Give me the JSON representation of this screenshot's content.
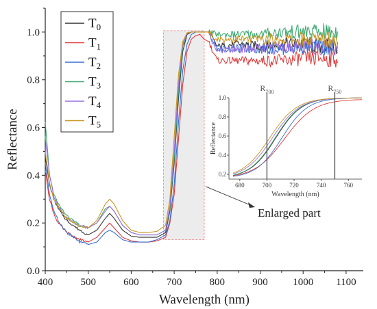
{
  "chart_data": {
    "type": "line",
    "xlabel": "Wavelength (nm)",
    "ylabel": "Reflectance",
    "xlim": [
      400,
      1140
    ],
    "ylim": [
      0.0,
      1.1
    ],
    "x_ticks": [
      400,
      500,
      600,
      700,
      800,
      900,
      1000,
      1100
    ],
    "y_ticks": [
      0.0,
      0.2,
      0.4,
      0.6,
      0.8,
      1.0
    ],
    "legend_placement": "top-left",
    "grid": false,
    "series": [
      {
        "name": "T0",
        "base": "T",
        "sub": "0",
        "color": "#333333",
        "x": [
          400,
          410,
          420,
          430,
          450,
          480,
          500,
          520,
          540,
          550,
          560,
          580,
          600,
          620,
          640,
          660,
          680,
          690,
          700,
          710,
          720,
          730,
          740,
          750,
          760,
          770,
          780,
          800,
          850,
          900,
          950,
          1000,
          1050,
          1080
        ],
        "y": [
          0.48,
          0.36,
          0.3,
          0.26,
          0.21,
          0.17,
          0.15,
          0.17,
          0.22,
          0.24,
          0.22,
          0.17,
          0.145,
          0.14,
          0.14,
          0.14,
          0.16,
          0.25,
          0.45,
          0.72,
          0.92,
          0.99,
          1.0,
          1.0,
          1.0,
          1.0,
          1.0,
          0.94,
          0.95,
          0.94,
          0.95,
          0.95,
          0.94,
          0.94
        ]
      },
      {
        "name": "T1",
        "base": "T",
        "sub": "1",
        "color": "#e03a3a",
        "x": [
          400,
          410,
          420,
          430,
          450,
          480,
          500,
          520,
          540,
          550,
          560,
          580,
          600,
          620,
          640,
          660,
          680,
          690,
          700,
          710,
          720,
          730,
          740,
          750,
          760,
          770,
          780,
          800,
          850,
          900,
          950,
          1000,
          1050,
          1080
        ],
        "y": [
          0.42,
          0.3,
          0.24,
          0.2,
          0.16,
          0.13,
          0.12,
          0.14,
          0.18,
          0.2,
          0.18,
          0.14,
          0.125,
          0.12,
          0.12,
          0.125,
          0.14,
          0.2,
          0.32,
          0.55,
          0.78,
          0.92,
          0.97,
          0.985,
          0.99,
          0.97,
          0.96,
          0.88,
          0.88,
          0.88,
          0.88,
          0.89,
          0.89,
          0.89
        ]
      },
      {
        "name": "T2",
        "base": "T",
        "sub": "2",
        "color": "#3a6fd4",
        "x": [
          400,
          410,
          420,
          430,
          450,
          480,
          500,
          520,
          540,
          550,
          560,
          580,
          600,
          620,
          640,
          660,
          680,
          690,
          700,
          710,
          720,
          730,
          740,
          750,
          760,
          770,
          780,
          800,
          850,
          900,
          950,
          1000,
          1050,
          1080
        ],
        "y": [
          0.45,
          0.32,
          0.25,
          0.21,
          0.16,
          0.12,
          0.11,
          0.12,
          0.16,
          0.17,
          0.16,
          0.13,
          0.12,
          0.12,
          0.12,
          0.13,
          0.15,
          0.21,
          0.36,
          0.62,
          0.84,
          0.95,
          0.99,
          1.0,
          1.0,
          1.0,
          1.0,
          0.93,
          0.93,
          0.93,
          0.93,
          0.94,
          0.94,
          0.94
        ]
      },
      {
        "name": "T3",
        "base": "T",
        "sub": "3",
        "color": "#3aa86e",
        "x": [
          400,
          410,
          420,
          430,
          450,
          480,
          500,
          520,
          540,
          550,
          560,
          580,
          600,
          620,
          640,
          660,
          680,
          690,
          700,
          710,
          720,
          730,
          740,
          750,
          760,
          770,
          780,
          800,
          850,
          900,
          950,
          1000,
          1050,
          1080
        ],
        "y": [
          0.62,
          0.4,
          0.32,
          0.28,
          0.23,
          0.19,
          0.18,
          0.2,
          0.26,
          0.27,
          0.25,
          0.19,
          0.16,
          0.15,
          0.15,
          0.15,
          0.17,
          0.26,
          0.47,
          0.75,
          0.94,
          0.995,
          1.0,
          1.0,
          1.0,
          1.0,
          1.0,
          0.99,
          0.99,
          0.99,
          1.0,
          1.0,
          1.0,
          1.0
        ]
      },
      {
        "name": "T4",
        "base": "T",
        "sub": "4",
        "color": "#9a6fe0",
        "x": [
          400,
          410,
          420,
          430,
          450,
          480,
          500,
          520,
          540,
          550,
          560,
          580,
          600,
          620,
          640,
          660,
          680,
          690,
          700,
          710,
          720,
          730,
          740,
          750,
          760,
          770,
          780,
          800,
          850,
          900,
          950,
          1000,
          1050,
          1080
        ],
        "y": [
          0.56,
          0.4,
          0.31,
          0.27,
          0.22,
          0.185,
          0.18,
          0.2,
          0.25,
          0.27,
          0.25,
          0.19,
          0.16,
          0.15,
          0.15,
          0.15,
          0.17,
          0.27,
          0.5,
          0.78,
          0.95,
          0.995,
          1.0,
          1.0,
          1.0,
          1.0,
          1.0,
          0.92,
          0.93,
          0.93,
          0.94,
          0.94,
          0.94,
          0.94
        ]
      },
      {
        "name": "T5",
        "base": "T",
        "sub": "5",
        "color": "#c8961e",
        "x": [
          400,
          410,
          420,
          430,
          450,
          480,
          500,
          520,
          540,
          550,
          560,
          580,
          600,
          620,
          640,
          660,
          680,
          690,
          700,
          710,
          720,
          730,
          740,
          750,
          760,
          770,
          780,
          800,
          850,
          900,
          950,
          1000,
          1050,
          1080
        ],
        "y": [
          0.5,
          0.37,
          0.3,
          0.27,
          0.22,
          0.185,
          0.18,
          0.21,
          0.28,
          0.3,
          0.28,
          0.21,
          0.17,
          0.16,
          0.16,
          0.165,
          0.19,
          0.3,
          0.56,
          0.82,
          0.96,
          0.997,
          1.0,
          1.0,
          1.0,
          1.0,
          1.0,
          0.97,
          0.97,
          0.97,
          0.97,
          0.97,
          0.97,
          0.97
        ]
      }
    ],
    "highlight_region": {
      "x": [
        675,
        770
      ],
      "y": [
        0.13,
        1.0
      ]
    },
    "annotation": {
      "text": "Enlarged part",
      "points_to": [
        770,
        0.33
      ]
    },
    "inset": {
      "xlabel": "Wavelength (nm)",
      "ylabel": "Reflectance",
      "xlim": [
        672,
        770
      ],
      "ylim": [
        0.15,
        1.0
      ],
      "x_ticks": [
        680,
        700,
        720,
        740,
        760
      ],
      "y_ticks": [
        0.2,
        0.4,
        0.6,
        0.8,
        1.0
      ],
      "reference_lines": [
        {
          "x": 700,
          "base": "R",
          "sub": "700"
        },
        {
          "x": 750,
          "base": "R",
          "sub": "750"
        }
      ]
    }
  }
}
